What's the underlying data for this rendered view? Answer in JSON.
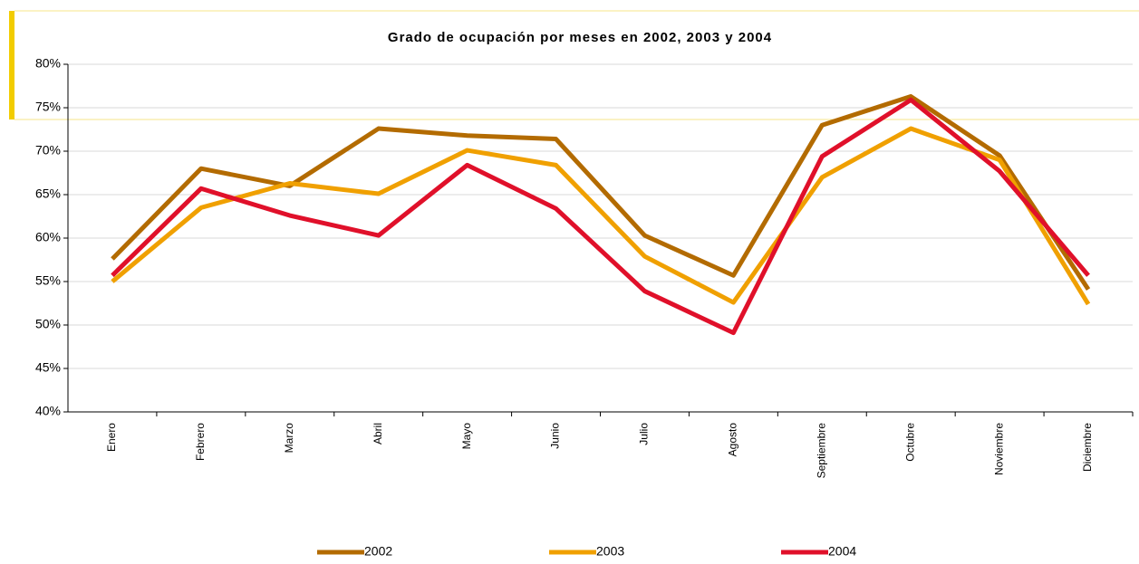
{
  "chart_data": {
    "type": "line",
    "title": "Grado de ocupación por meses en 2002, 2003 y 2004",
    "categories": [
      "Enero",
      "Febrero",
      "Marzo",
      "Abril",
      "Mayo",
      "Junio",
      "Julio",
      "Agosto",
      "Septiembre",
      "Octubre",
      "Noviembre",
      "Diciembre"
    ],
    "series": [
      {
        "name": "2002",
        "color": "#b36b00",
        "values": [
          57.6,
          68.0,
          66.0,
          72.6,
          71.8,
          71.4,
          60.3,
          55.7,
          73.0,
          76.3,
          69.5,
          54.1
        ]
      },
      {
        "name": "2003",
        "color": "#f0a000",
        "values": [
          55.0,
          63.5,
          66.3,
          65.1,
          70.1,
          68.4,
          57.9,
          52.6,
          67.0,
          72.6,
          69.0,
          52.4
        ]
      },
      {
        "name": "2004",
        "color": "#e0102a",
        "values": [
          55.7,
          65.7,
          62.6,
          60.3,
          68.4,
          63.4,
          53.9,
          49.1,
          69.4,
          75.9,
          67.7,
          55.7
        ]
      }
    ],
    "ylim": [
      40,
      80
    ],
    "yticks": [
      {
        "value": 40,
        "label": "40%"
      },
      {
        "value": 45,
        "label": "45%"
      },
      {
        "value": 50,
        "label": "50%"
      },
      {
        "value": 55,
        "label": "55%"
      },
      {
        "value": 60,
        "label": "60%"
      },
      {
        "value": 65,
        "label": "65%"
      },
      {
        "value": 70,
        "label": "70%"
      },
      {
        "value": 75,
        "label": "75%"
      },
      {
        "value": 80,
        "label": "80%"
      }
    ],
    "grid": true,
    "legend": "bottom"
  }
}
